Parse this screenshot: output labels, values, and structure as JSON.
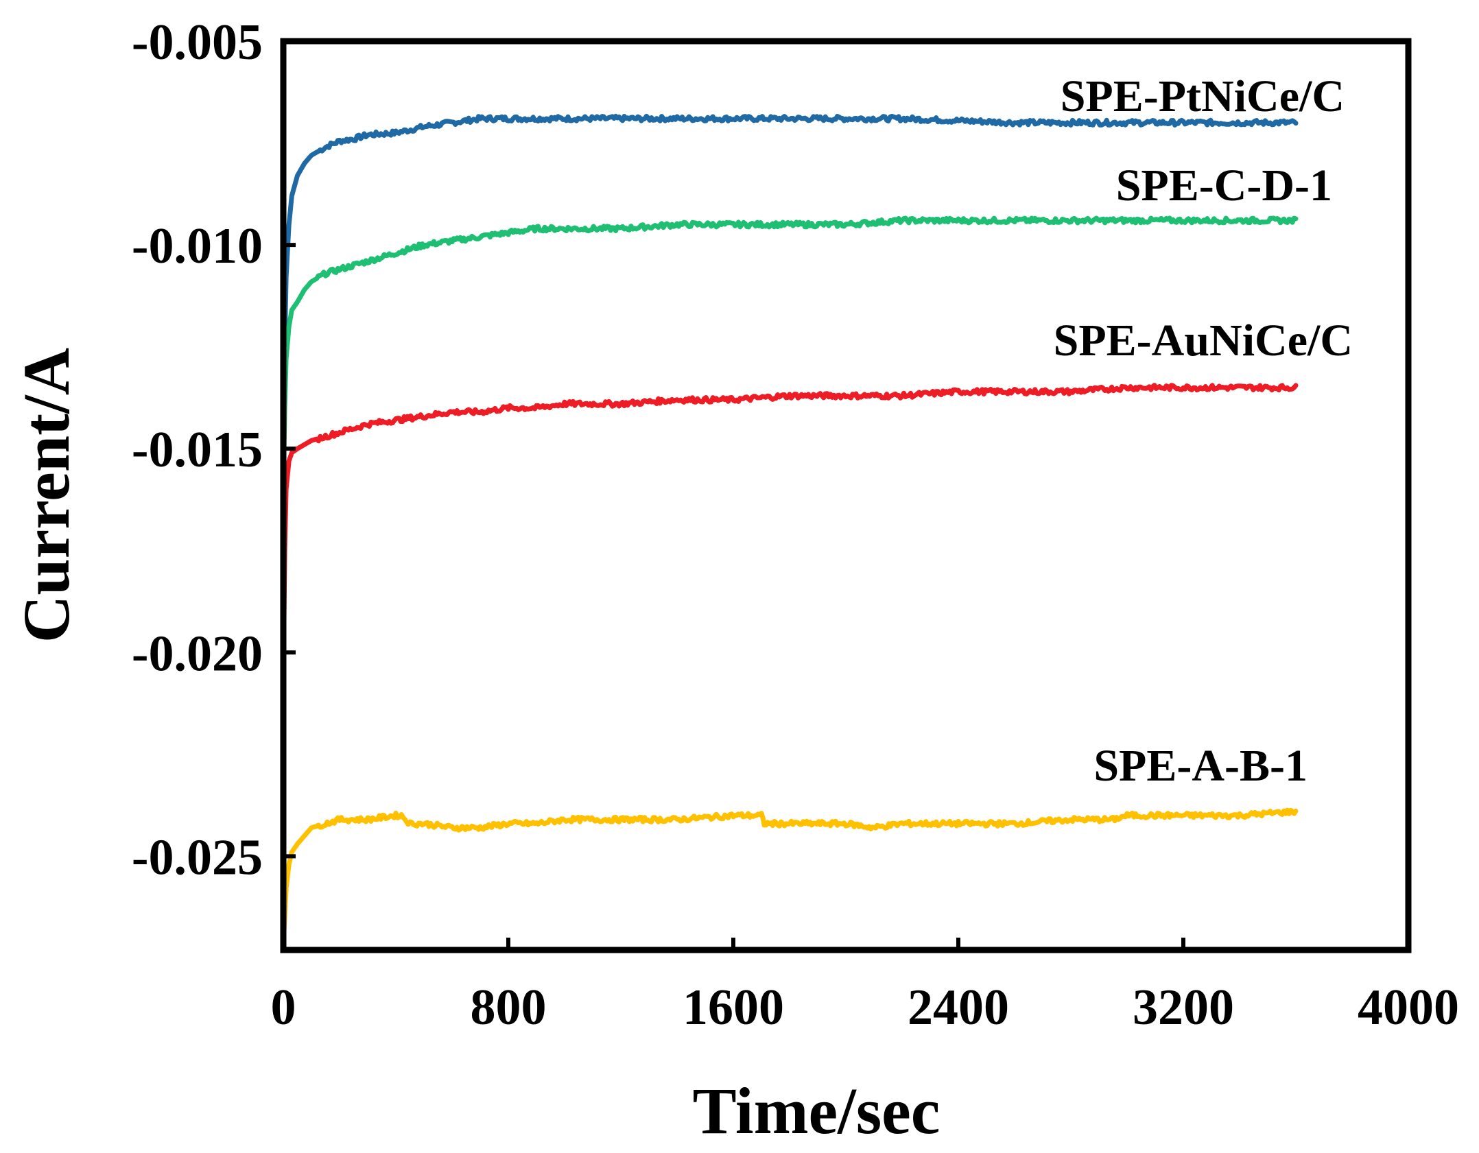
{
  "chart_data": {
    "type": "line",
    "title": "",
    "xlabel": "Time/sec",
    "ylabel": "Current/A",
    "xlim": [
      0,
      4000
    ],
    "ylim": [
      -0.0273,
      -0.005
    ],
    "xticks": [
      0,
      800,
      1600,
      2400,
      3200,
      4000
    ],
    "xtick_labels": [
      "0",
      "800",
      "1600",
      "2400",
      "3200",
      "4000"
    ],
    "yticks": [
      -0.005,
      -0.01,
      -0.015,
      -0.02,
      -0.025
    ],
    "ytick_labels": [
      "-0.005",
      "-0.010",
      "-0.015",
      "-0.020",
      "-0.025"
    ],
    "grid": false,
    "series": [
      {
        "name": "SPE-PtNiCe/C",
        "color": "#1f6aa5",
        "x": [
          0,
          5,
          10,
          20,
          30,
          50,
          75,
          100,
          150,
          200,
          250,
          300,
          400,
          500,
          600,
          700,
          800,
          900,
          1000,
          1200,
          1400,
          1600,
          1800,
          2000,
          2200,
          2400,
          2600,
          2800,
          3000,
          3200,
          3400,
          3600
        ],
        "y": [
          -0.0165,
          -0.0125,
          -0.0108,
          -0.0095,
          -0.0088,
          -0.0083,
          -0.008,
          -0.0078,
          -0.0076,
          -0.00745,
          -0.0074,
          -0.0073,
          -0.00725,
          -0.0071,
          -0.007,
          -0.0069,
          -0.0069,
          -0.0069,
          -0.0069,
          -0.0069,
          -0.0069,
          -0.0069,
          -0.0069,
          -0.0069,
          -0.0069,
          -0.00695,
          -0.007,
          -0.007,
          -0.007,
          -0.007,
          -0.007,
          -0.007
        ]
      },
      {
        "name": "SPE-C-D-1",
        "color": "#1fbf73",
        "x": [
          0,
          5,
          10,
          20,
          30,
          50,
          75,
          100,
          150,
          200,
          250,
          300,
          400,
          500,
          600,
          700,
          800,
          900,
          1000,
          1200,
          1400,
          1600,
          1800,
          2000,
          2200,
          2400,
          2600,
          2800,
          3000,
          3200,
          3400,
          3600
        ],
        "y": [
          -0.016,
          -0.014,
          -0.0128,
          -0.012,
          -0.0116,
          -0.0114,
          -0.0111,
          -0.0109,
          -0.0107,
          -0.0106,
          -0.0105,
          -0.0104,
          -0.0102,
          -0.01,
          -0.0099,
          -0.0098,
          -0.0097,
          -0.0096,
          -0.0096,
          -0.0096,
          -0.0095,
          -0.0095,
          -0.0095,
          -0.0095,
          -0.0094,
          -0.0094,
          -0.0094,
          -0.0094,
          -0.0094,
          -0.0094,
          -0.0094,
          -0.0094
        ]
      },
      {
        "name": "SPE-AuNiCe/C",
        "color": "#ee1c25",
        "x": [
          0,
          5,
          10,
          20,
          30,
          50,
          75,
          100,
          150,
          200,
          250,
          300,
          400,
          500,
          600,
          700,
          800,
          900,
          1000,
          1200,
          1400,
          1600,
          1800,
          2000,
          2200,
          2400,
          2600,
          2800,
          3000,
          3200,
          3400,
          3600
        ],
        "y": [
          -0.0207,
          -0.0175,
          -0.016,
          -0.0153,
          -0.0151,
          -0.015,
          -0.0149,
          -0.0148,
          -0.0147,
          -0.0146,
          -0.0145,
          -0.0144,
          -0.0143,
          -0.0142,
          -0.0141,
          -0.0141,
          -0.014,
          -0.014,
          -0.0139,
          -0.0139,
          -0.0138,
          -0.0138,
          -0.0137,
          -0.0137,
          -0.0137,
          -0.0136,
          -0.0136,
          -0.0136,
          -0.0135,
          -0.0135,
          -0.0135,
          -0.0135
        ]
      },
      {
        "name": "SPE-A-B-1",
        "color": "#ffc000",
        "x": [
          0,
          5,
          10,
          20,
          30,
          50,
          75,
          100,
          150,
          200,
          250,
          300,
          400,
          420,
          450,
          500,
          600,
          700,
          800,
          900,
          1000,
          1200,
          1400,
          1600,
          1700,
          1710,
          1800,
          2000,
          2100,
          2200,
          2400,
          2600,
          2800,
          2950,
          3000,
          3200,
          3400,
          3600
        ],
        "y": [
          -0.0272,
          -0.0265,
          -0.0258,
          -0.0252,
          -0.0249,
          -0.0247,
          -0.0245,
          -0.0243,
          -0.0242,
          -0.0241,
          -0.0241,
          -0.0241,
          -0.024,
          -0.024,
          -0.0242,
          -0.0242,
          -0.0243,
          -0.0243,
          -0.0242,
          -0.0242,
          -0.0241,
          -0.0241,
          -0.0241,
          -0.024,
          -0.024,
          -0.0242,
          -0.0242,
          -0.0242,
          -0.0243,
          -0.0242,
          -0.0242,
          -0.0242,
          -0.0241,
          -0.0241,
          -0.024,
          -0.024,
          -0.024,
          -0.0239
        ]
      }
    ]
  }
}
